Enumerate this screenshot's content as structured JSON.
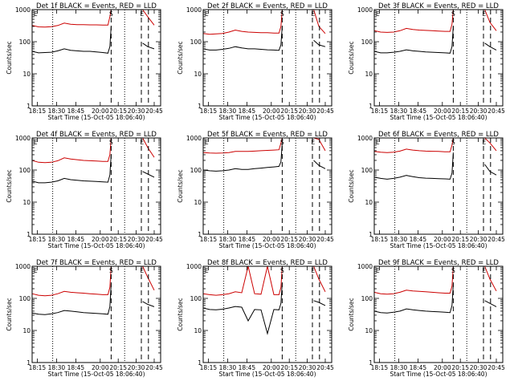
{
  "chart_data": [
    {
      "type": "line",
      "title": "Det 1f BLACK = Events, RED = LLD",
      "xlabel": "Start Time (15-Oct-05 18:06:40)",
      "ylabel": "Counts/sec",
      "y_scale": "log",
      "ylim": [
        1,
        1000
      ],
      "x_tick_labels": [
        "18:15",
        "18:30",
        "18:45",
        "20:00",
        "20:15",
        "20:30",
        "20:45"
      ],
      "y_tick_labels": [
        "1",
        "10",
        "100",
        "1000"
      ],
      "markers": [
        "E",
        "S",
        "E"
      ],
      "series": [
        {
          "color": "#000000",
          "values": [
            50,
            45,
            46,
            47,
            52,
            60,
            54,
            52,
            50,
            50,
            48,
            46,
            44,
            70,
            300,
            null,
            90,
            70,
            60
          ]
        },
        {
          "color": "#cc0000",
          "values": [
            320,
            290,
            285,
            295,
            320,
            380,
            350,
            340,
            340,
            335,
            335,
            330,
            330,
            600,
            1000,
            null,
            1000,
            600,
            330
          ]
        }
      ]
    },
    {
      "type": "line",
      "title": "Det 2f BLACK = Events, RED = LLD",
      "xlabel": "Start Time (15-Oct-05 18:06:40)",
      "ylabel": "Counts/sec",
      "y_scale": "log",
      "ylim": [
        1,
        1000
      ],
      "x_tick_labels": [
        "18:15",
        "18:30",
        "18:45",
        "20:00",
        "20:15",
        "20:30",
        "20:45"
      ],
      "y_tick_labels": [
        "1",
        "10",
        "100",
        "1000"
      ],
      "markers": [
        "E",
        "S",
        "E"
      ],
      "series": [
        {
          "color": "#000000",
          "values": [
            60,
            55,
            55,
            58,
            62,
            70,
            64,
            60,
            60,
            58,
            56,
            55,
            54,
            80,
            300,
            null,
            110,
            80,
            70
          ]
        },
        {
          "color": "#cc0000",
          "values": [
            180,
            170,
            175,
            180,
            200,
            230,
            210,
            200,
            195,
            190,
            190,
            185,
            185,
            300,
            1000,
            null,
            1000,
            300,
            180
          ]
        }
      ]
    },
    {
      "type": "line",
      "title": "Det 3f BLACK = Events, RED = LLD",
      "xlabel": "Start Time (15-Oct-05 18:06:40)",
      "ylabel": "Counts/sec",
      "y_scale": "log",
      "ylim": [
        1,
        1000
      ],
      "x_tick_labels": [
        "18:15",
        "18:30",
        "18:45",
        "20:00",
        "20:15",
        "20:30",
        "20:45"
      ],
      "y_tick_labels": [
        "1",
        "10",
        "100",
        "1000"
      ],
      "markers": [
        "E",
        "S",
        "E"
      ],
      "series": [
        {
          "color": "#000000",
          "values": [
            50,
            45,
            45,
            47,
            50,
            56,
            52,
            50,
            48,
            47,
            46,
            45,
            44,
            70,
            300,
            null,
            90,
            70,
            55
          ]
        },
        {
          "color": "#cc0000",
          "values": [
            220,
            200,
            195,
            200,
            220,
            260,
            240,
            230,
            225,
            220,
            215,
            210,
            210,
            350,
            1000,
            null,
            1000,
            400,
            220
          ]
        }
      ]
    },
    {
      "type": "line",
      "title": "Det 4f BLACK = Events, RED = LLD",
      "xlabel": "Start Time (15-Oct-05 18:06:40)",
      "ylabel": "Counts/sec",
      "y_scale": "log",
      "ylim": [
        1,
        1000
      ],
      "x_tick_labels": [
        "18:15",
        "18:30",
        "18:45",
        "20:00",
        "20:15",
        "20:30",
        "20:45"
      ],
      "y_tick_labels": [
        "1",
        "10",
        "100",
        "1000"
      ],
      "markers": [
        "E",
        "S",
        "E"
      ],
      "series": [
        {
          "color": "#000000",
          "values": [
            45,
            40,
            40,
            42,
            46,
            55,
            50,
            48,
            46,
            45,
            44,
            43,
            42,
            70,
            300,
            null,
            90,
            75,
            60
          ]
        },
        {
          "color": "#cc0000",
          "values": [
            200,
            175,
            170,
            175,
            195,
            240,
            220,
            210,
            200,
            195,
            190,
            185,
            185,
            300,
            1000,
            null,
            1000,
            500,
            250
          ]
        }
      ]
    },
    {
      "type": "line",
      "title": "Det 5f BLACK = Events, RED = LLD",
      "xlabel": "Start Time (15-Oct-05 18:06:40)",
      "ylabel": "Counts/sec",
      "y_scale": "log",
      "ylim": [
        1,
        1000
      ],
      "x_tick_labels": [
        "18:15",
        "18:30",
        "18:45",
        "20:00",
        "20:15",
        "20:30",
        "20:45"
      ],
      "y_tick_labels": [
        "1",
        "10",
        "100",
        "1000"
      ],
      "markers": [
        "E",
        "S",
        "E"
      ],
      "series": [
        {
          "color": "#000000",
          "values": [
            100,
            95,
            92,
            95,
            100,
            110,
            105,
            105,
            110,
            115,
            120,
            125,
            130,
            180,
            700,
            null,
            200,
            140,
            110
          ]
        },
        {
          "color": "#cc0000",
          "values": [
            350,
            340,
            335,
            340,
            350,
            380,
            380,
            380,
            390,
            400,
            410,
            420,
            430,
            700,
            1000,
            null,
            1000,
            900,
            400
          ]
        }
      ]
    },
    {
      "type": "line",
      "title": "Det 6f BLACK = Events, RED = LLD",
      "xlabel": "Start Time (15-Oct-05 18:06:40)",
      "ylabel": "Counts/sec",
      "y_scale": "log",
      "ylim": [
        1,
        1000
      ],
      "x_tick_labels": [
        "18:15",
        "18:30",
        "18:45",
        "20:00",
        "20:15",
        "20:30",
        "20:45"
      ],
      "y_tick_labels": [
        "1",
        "10",
        "100",
        "1000"
      ],
      "markers": [
        "E",
        "S",
        "E"
      ],
      "series": [
        {
          "color": "#000000",
          "values": [
            60,
            55,
            52,
            55,
            60,
            68,
            62,
            58,
            56,
            55,
            54,
            53,
            52,
            80,
            350,
            null,
            150,
            90,
            70
          ]
        },
        {
          "color": "#cc0000",
          "values": [
            380,
            360,
            350,
            360,
            390,
            450,
            420,
            400,
            390,
            385,
            380,
            370,
            370,
            600,
            1000,
            null,
            1000,
            700,
            400
          ]
        }
      ]
    },
    {
      "type": "line",
      "title": "Det 7f BLACK = Events, RED = LLD",
      "xlabel": "Start Time (15-Oct-05 18:06:40)",
      "ylabel": "Counts/sec",
      "y_scale": "log",
      "ylim": [
        1,
        1000
      ],
      "x_tick_labels": [
        "18:15",
        "18:30",
        "18:45",
        "20:00",
        "20:15",
        "20:30",
        "20:45"
      ],
      "y_tick_labels": [
        "1",
        "10",
        "100",
        "1000"
      ],
      "markers": [
        "E",
        "S",
        "E"
      ],
      "series": [
        {
          "color": "#000000",
          "values": [
            35,
            32,
            31,
            33,
            36,
            42,
            40,
            38,
            36,
            35,
            34,
            33,
            32,
            55,
            280,
            null,
            80,
            65,
            55
          ]
        },
        {
          "color": "#cc0000",
          "values": [
            140,
            125,
            120,
            125,
            140,
            165,
            155,
            150,
            145,
            140,
            135,
            130,
            130,
            220,
            1000,
            null,
            1000,
            450,
            180
          ]
        }
      ]
    },
    {
      "type": "line",
      "title": "Det 8f BLACK = Events, RED = LLD",
      "xlabel": "Start Time (15-Oct-05 18:06:40)",
      "ylabel": "Counts/sec",
      "y_scale": "log",
      "ylim": [
        1,
        1000
      ],
      "x_tick_labels": [
        "18:15",
        "18:30",
        "18:45",
        "20:00",
        "20:15",
        "20:30",
        "20:45"
      ],
      "y_tick_labels": [
        "1",
        "10",
        "100",
        "1000"
      ],
      "markers": [
        "E",
        "S",
        "E"
      ],
      "series": [
        {
          "color": "#000000",
          "values": [
            50,
            45,
            44,
            46,
            50,
            56,
            53,
            20,
            45,
            44,
            8,
            45,
            44,
            70,
            300,
            null,
            85,
            75,
            60
          ]
        },
        {
          "color": "#cc0000",
          "values": [
            140,
            130,
            125,
            130,
            140,
            160,
            150,
            1000,
            140,
            135,
            1000,
            130,
            130,
            220,
            1000,
            null,
            1000,
            400,
            160
          ]
        }
      ]
    },
    {
      "type": "line",
      "title": "Det 9f BLACK = Events, RED = LLD",
      "xlabel": "Start Time (15-Oct-05 18:06:40)",
      "ylabel": "Counts/sec",
      "y_scale": "log",
      "ylim": [
        1,
        1000
      ],
      "x_tick_labels": [
        "18:15",
        "18:30",
        "18:45",
        "20:00",
        "20:15",
        "20:30",
        "20:45"
      ],
      "y_tick_labels": [
        "1",
        "10",
        "100",
        "1000"
      ],
      "markers": [
        "E",
        "S",
        "E"
      ],
      "series": [
        {
          "color": "#000000",
          "values": [
            40,
            36,
            35,
            37,
            40,
            47,
            44,
            42,
            40,
            39,
            38,
            37,
            36,
            60,
            280,
            null,
            85,
            70,
            55
          ]
        },
        {
          "color": "#cc0000",
          "values": [
            155,
            140,
            135,
            140,
            155,
            180,
            170,
            165,
            160,
            155,
            150,
            145,
            145,
            240,
            1000,
            null,
            1000,
            400,
            170
          ]
        }
      ]
    }
  ]
}
